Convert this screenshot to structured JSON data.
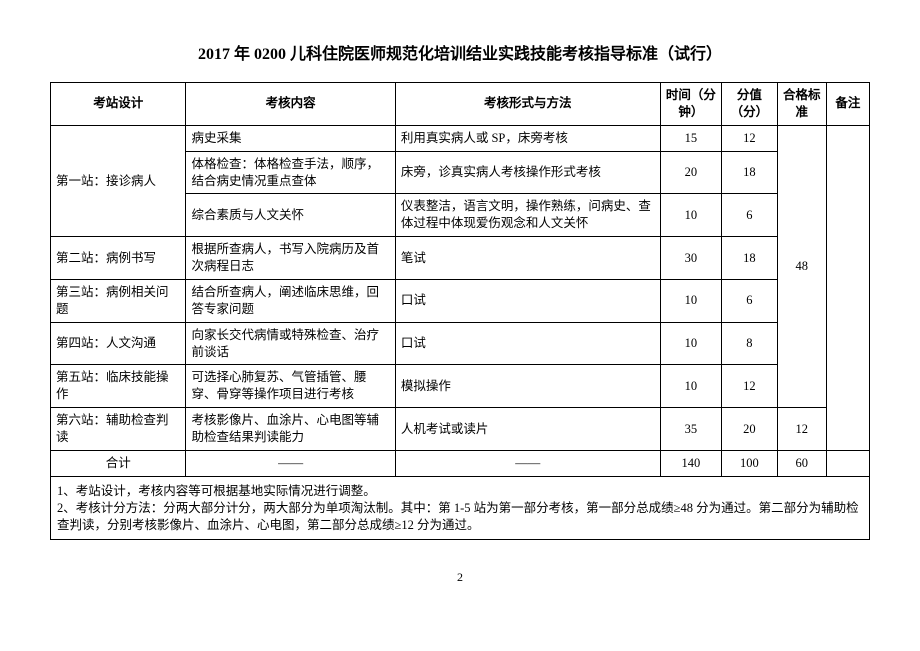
{
  "title": "2017 年 0200 儿科住院医师规范化培训结业实践技能考核指导标准（试行）",
  "headers": {
    "station": "考站设计",
    "content": "考核内容",
    "method": "考核形式与方法",
    "time": "时间（分钟）",
    "score": "分值（分）",
    "pass": "合格标准",
    "remark": "备注"
  },
  "rows": [
    {
      "station": "第一站：接诊病人",
      "items": [
        {
          "content": "病史采集",
          "method": "利用真实病人或 SP，床旁考核",
          "time": "15",
          "score": "12"
        },
        {
          "content": "体格检查：体格检查手法，顺序，结合病史情况重点查体",
          "method": "床旁，诊真实病人考核操作形式考核",
          "time": "20",
          "score": "18"
        },
        {
          "content": "综合素质与人文关怀",
          "method": "仪表整洁，语言文明，操作熟练，问病史、查体过程中体现爱伤观念和人文关怀",
          "time": "10",
          "score": "6"
        }
      ]
    },
    {
      "station": "第二站：病例书写",
      "items": [
        {
          "content": "根据所查病人，书写入院病历及首次病程日志",
          "method": "笔试",
          "time": "30",
          "score": "18"
        }
      ]
    },
    {
      "station": "第三站：病例相关问题",
      "items": [
        {
          "content": "结合所查病人，阐述临床思维，回答专家问题",
          "method": "口试",
          "time": "10",
          "score": "6"
        }
      ]
    },
    {
      "station": "第四站：人文沟通",
      "items": [
        {
          "content": "向家长交代病情或特殊检查、治疗前谈话",
          "method": "口试",
          "time": "10",
          "score": "8"
        }
      ]
    },
    {
      "station": "第五站：临床技能操作",
      "items": [
        {
          "content": "可选择心肺复苏、气管插管、腰穿、骨穿等操作项目进行考核",
          "method": "模拟操作",
          "time": "10",
          "score": "12"
        }
      ]
    },
    {
      "station": "第六站：辅助检查判读",
      "items": [
        {
          "content": "考核影像片、血涂片、心电图等辅助检查结果判读能力",
          "method": "人机考试或读片",
          "time": "35",
          "score": "20"
        }
      ]
    }
  ],
  "pass_group1": "48",
  "pass_group2": "12",
  "total": {
    "label": "合计",
    "dash": "——",
    "time": "140",
    "score": "100",
    "pass": "60"
  },
  "notes": "1、考站设计，考核内容等可根据基地实际情况进行调整。\n2、考核计分方法：分两大部分计分，两大部分为单项淘汰制。其中：第 1-5 站为第一部分考核，第一部分总成绩≥48 分为通过。第二部分为辅助检查判读，分别考核影像片、血涂片、心电图，第二部分总成绩≥12 分为通过。",
  "page_number": "2"
}
